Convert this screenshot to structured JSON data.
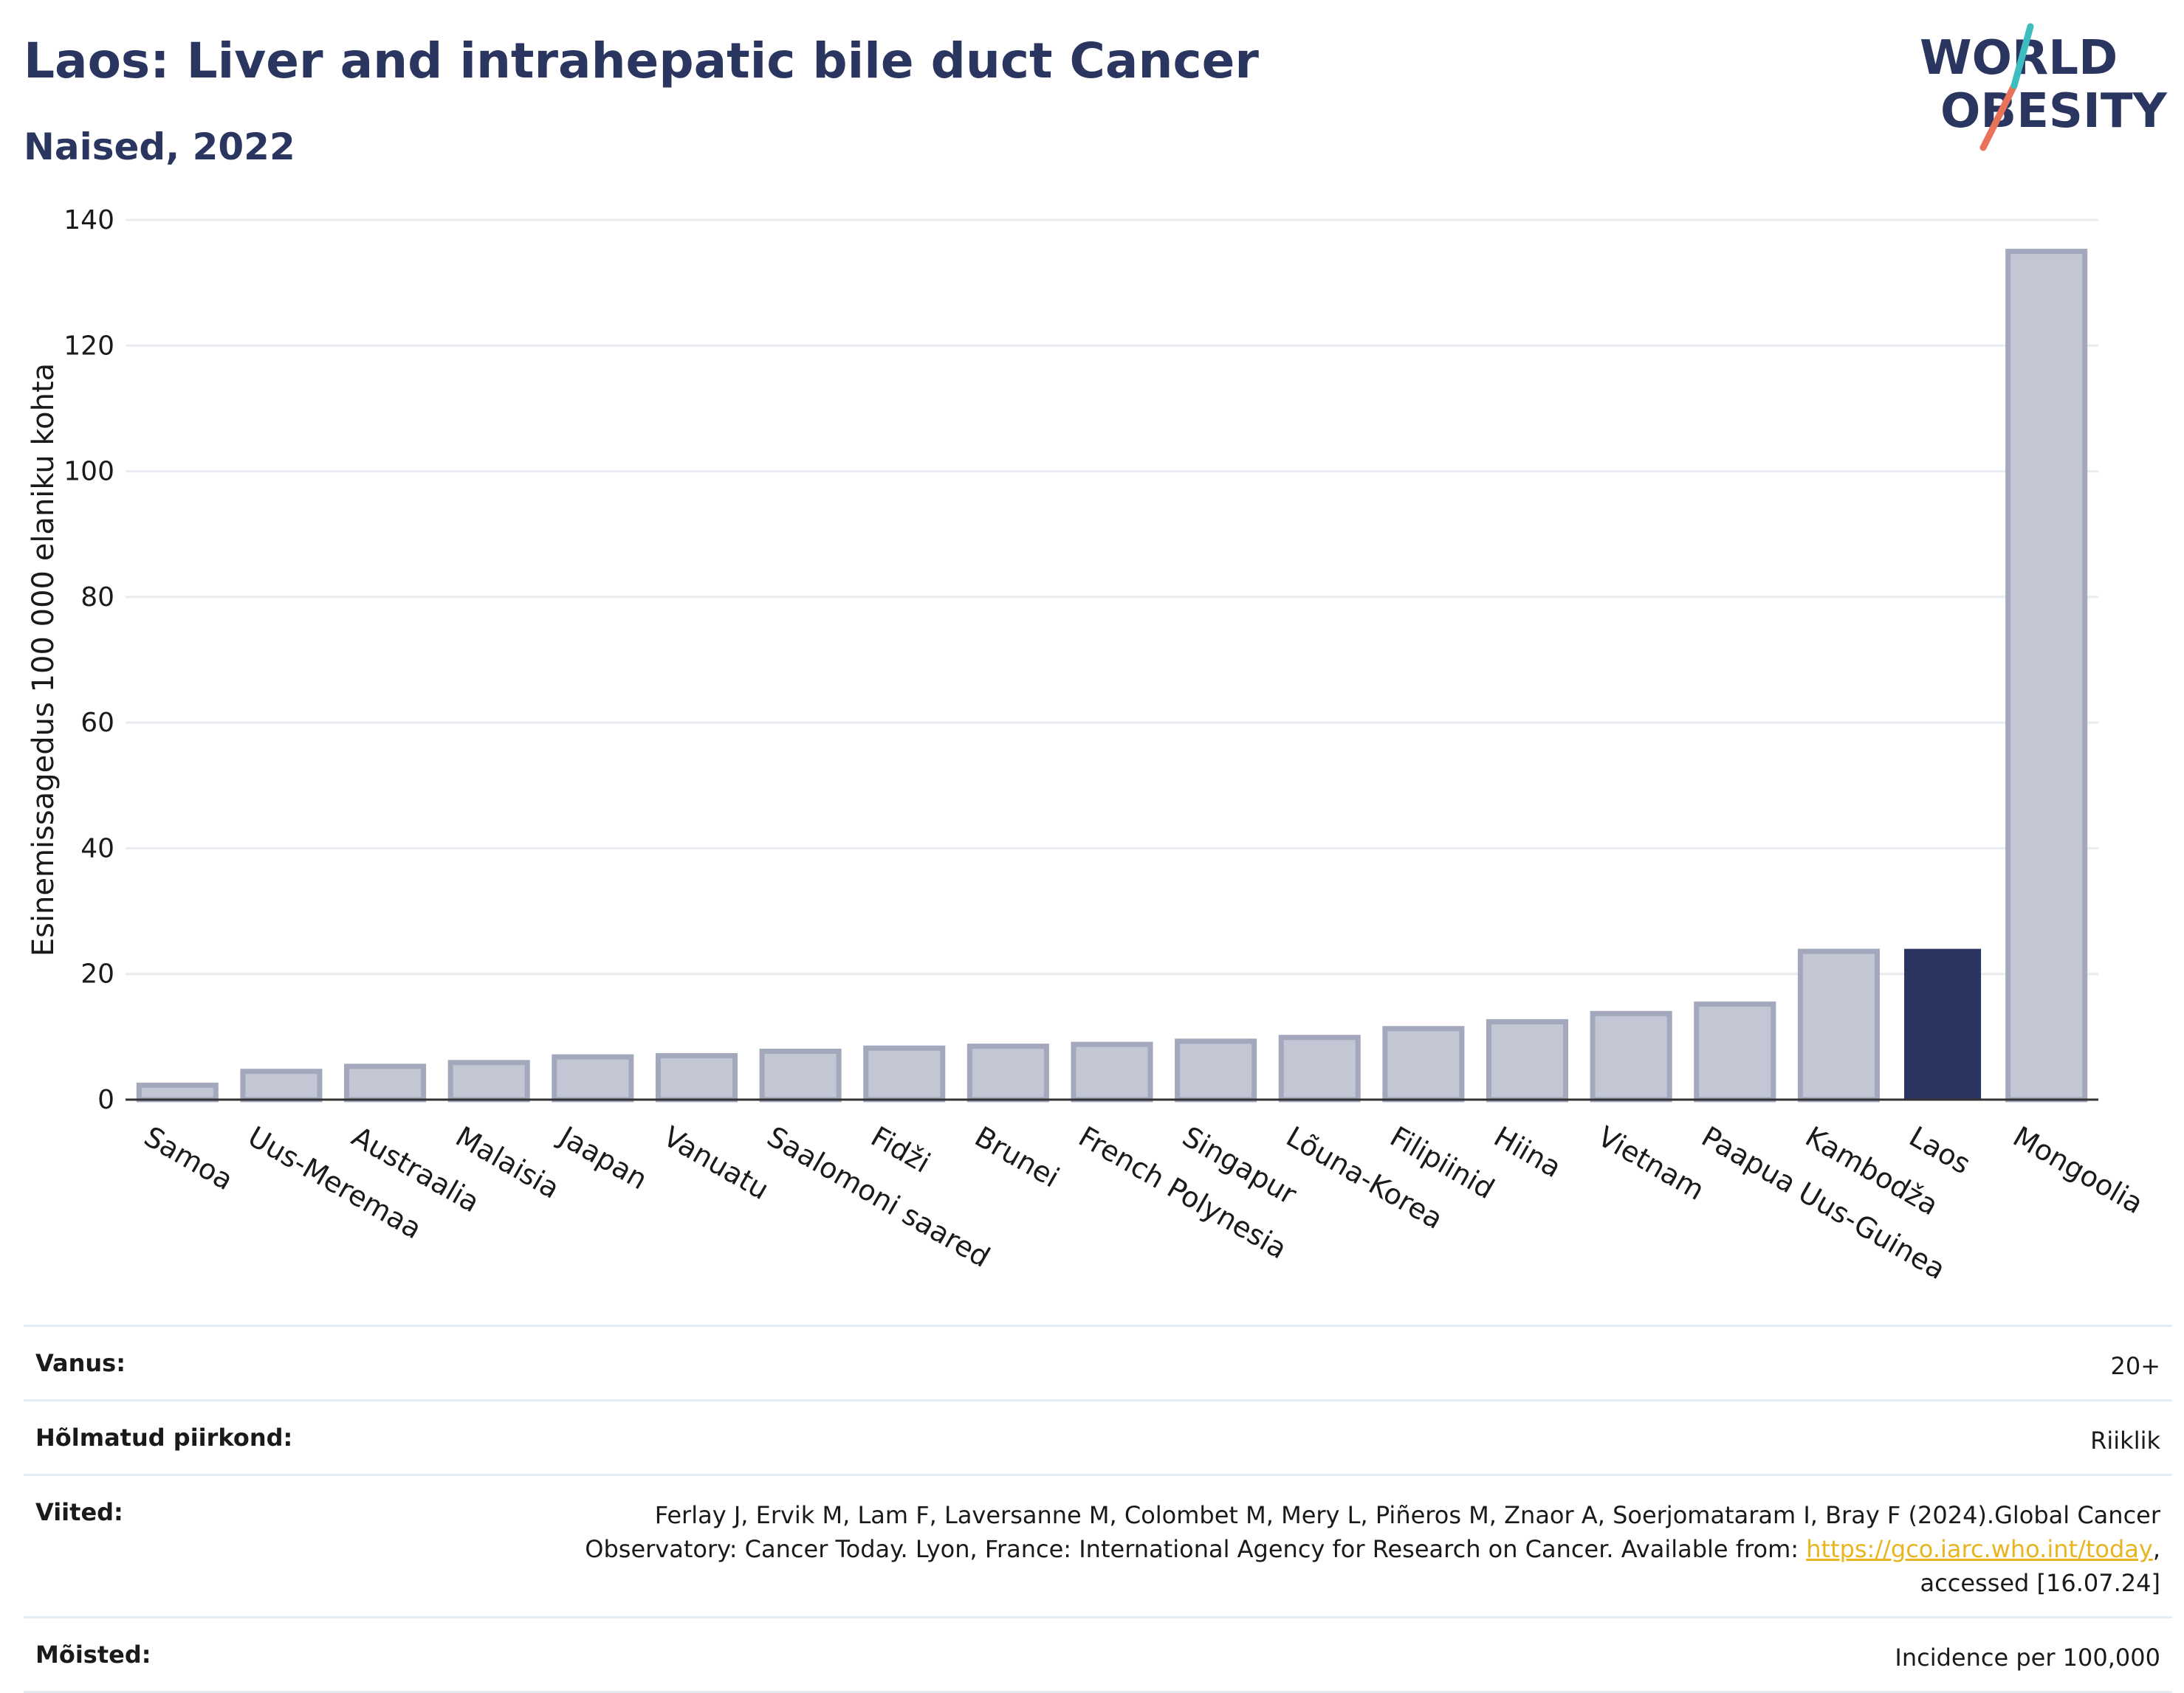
{
  "header": {
    "title": "Laos: Liver and intrahepatic bile duct Cancer",
    "subtitle": "Naised, 2022"
  },
  "logo": {
    "line1": "WORLD",
    "line2": "OBESITY"
  },
  "chart_data": {
    "type": "bar",
    "ylabel": "Esinemissagedus 100 000 elaniku kohta",
    "ylim": [
      0,
      140
    ],
    "yticks": [
      0,
      20,
      40,
      60,
      80,
      100,
      120,
      140
    ],
    "grid": true,
    "highlight": "Laos",
    "categories": [
      "Samoa",
      "Uus-Meremaa",
      "Austraalia",
      "Malaisia",
      "Jaapan",
      "Vanuatu",
      "Saalomoni saared",
      "Fidži",
      "Brunei",
      "French Polynesia",
      "Singapur",
      "Lõuna-Korea",
      "Filipiinid",
      "Hiina",
      "Vietnam",
      "Paapua Uus-Guinea",
      "Kambodža",
      "Laos",
      "Mongoolia"
    ],
    "values": [
      2.3,
      4.5,
      5.3,
      5.9,
      6.8,
      7.0,
      7.7,
      8.2,
      8.5,
      8.8,
      9.3,
      9.9,
      11.3,
      12.4,
      13.7,
      15.2,
      23.6,
      24.0,
      135.0
    ]
  },
  "colors": {
    "bar": "#c3c6d3",
    "bar_border": "#a3a8bd",
    "highlight": "#2b3660",
    "text": "#2b3660",
    "grid": "#e8ecf1",
    "logo_teal": "#3dbdbf",
    "logo_coral": "#e8725a"
  },
  "info": {
    "rows": [
      {
        "label": "Vanus:",
        "value": "20+"
      },
      {
        "label": "Hõlmatud piirkond:",
        "value": "Riiklik"
      },
      {
        "label": "Viited:",
        "value_pre": "Ferlay J, Ervik M, Lam F, Laversanne M, Colombet M, Mery L, Piñeros M, Znaor A, Soerjomataram I, Bray F (2024).Global Cancer Observatory: Cancer Today. Lyon, France: International Agency for Research on Cancer. Available from: ",
        "link": "https://gco.iarc.who.int/today",
        "value_post": ", accessed [16.07.24]"
      },
      {
        "label": "Mõisted:",
        "value": "Incidence per 100,000"
      }
    ]
  }
}
